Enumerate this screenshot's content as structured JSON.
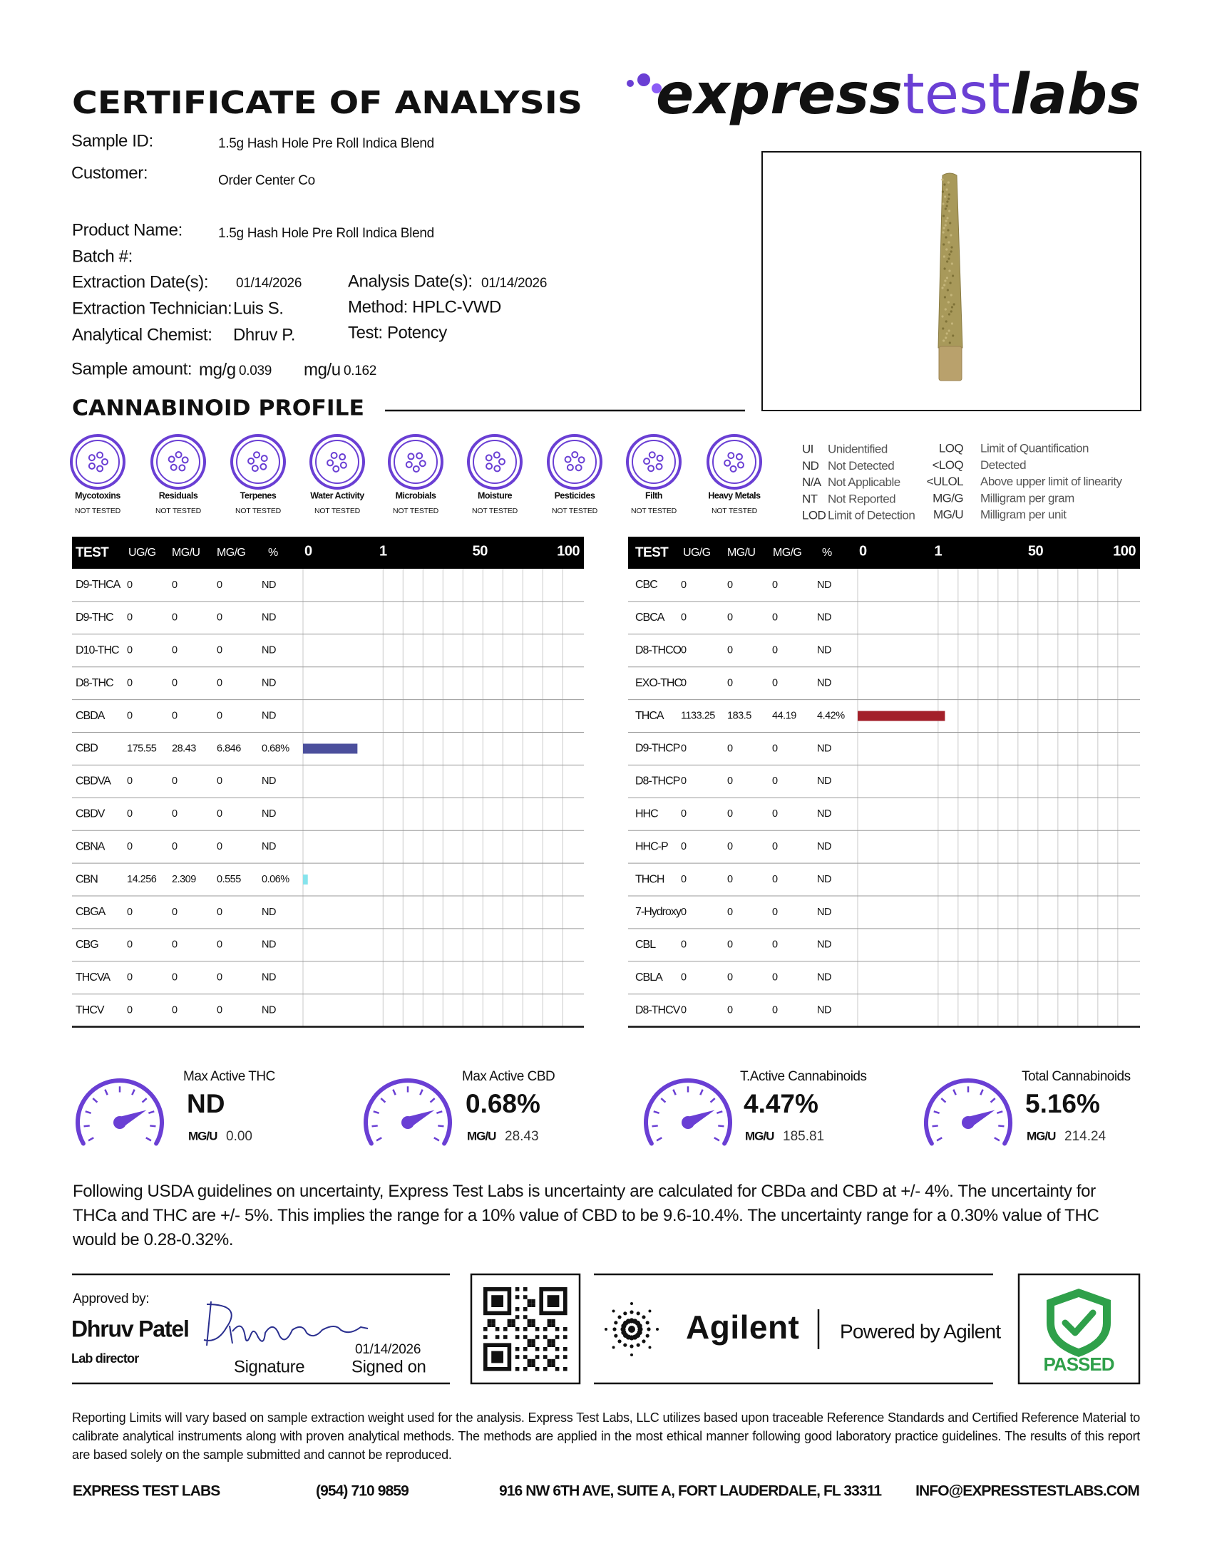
{
  "header": {
    "title": "CERTIFICATE OF ANALYSIS",
    "logo": [
      "express",
      "test",
      "labs"
    ]
  },
  "sample": {
    "sample_id": {
      "label": "Sample ID:",
      "value": "1.5g Hash Hole Pre Roll Indica Blend"
    },
    "customer": {
      "label": "Customer:",
      "value": "Order Center Co"
    },
    "product_name": {
      "label": "Product Name:",
      "value": "1.5g Hash Hole Pre Roll Indica Blend"
    },
    "batch": {
      "label": "Batch #:"
    },
    "extraction_date": {
      "label": "Extraction Date(s):",
      "value": "01/14/2026"
    },
    "analysis_date": {
      "label": "Analysis Date(s):",
      "value": "01/14/2026"
    },
    "extraction_technician": {
      "label": "Extraction Technician:",
      "value": "Luis S."
    },
    "method": "Method: HPLC-VWD",
    "analytical_chemist": {
      "label": "Analytical Chemist:",
      "value": "Dhruv P."
    },
    "test": "Test: Potency",
    "sample_amount": {
      "label": "Sample amount:",
      "mg_g_label": "mg/g",
      "mg_g": "0.039",
      "mg_u_label": "mg/u",
      "mg_u": "0.162"
    }
  },
  "profile": {
    "title": "CANNABINOID PROFILE"
  },
  "tests": [
    {
      "name": "Mycotoxins",
      "status": "NOT TESTED"
    },
    {
      "name": "Residuals",
      "status": "NOT TESTED"
    },
    {
      "name": "Terpenes",
      "status": "NOT TESTED"
    },
    {
      "name": "Water Activity",
      "status": "NOT TESTED"
    },
    {
      "name": "Microbials",
      "status": "NOT TESTED"
    },
    {
      "name": "Moisture",
      "status": "NOT TESTED"
    },
    {
      "name": "Pesticides",
      "status": "NOT TESTED"
    },
    {
      "name": "Filth",
      "status": "NOT TESTED"
    },
    {
      "name": "Heavy Metals",
      "status": "NOT TESTED"
    }
  ],
  "legend": {
    "left": [
      {
        "abbr": "UI",
        "meaning": "Unidentified"
      },
      {
        "abbr": "ND",
        "meaning": "Not Detected"
      },
      {
        "abbr": "N/A",
        "meaning": "Not Applicable"
      },
      {
        "abbr": "NT",
        "meaning": "Not Reported"
      },
      {
        "abbr": "LOD",
        "meaning": "Limit of Detection"
      }
    ],
    "right": [
      {
        "abbr": "LOQ",
        "meaning": "Limit of Quantification"
      },
      {
        "abbr": "<LOQ",
        "meaning": "Detected"
      },
      {
        "abbr": "<ULOL",
        "meaning": "Above upper limit of linearity"
      },
      {
        "abbr": "MG/G",
        "meaning": "Milligram per gram"
      },
      {
        "abbr": "MG/U",
        "meaning": "Milligram per unit"
      }
    ]
  },
  "tables": [
    {
      "columns": [
        "TEST",
        "UG/G",
        "MG/U",
        "MG/G",
        "%"
      ],
      "scale": [
        0,
        1,
        50,
        100
      ],
      "rows": [
        {
          "test": "D9-THCA",
          "ug_g": 0,
          "mg_u": 0,
          "mg_g": 0,
          "percent": null,
          "percent_label": "ND"
        },
        {
          "test": "D9-THC",
          "ug_g": 0,
          "mg_u": 0,
          "mg_g": 0,
          "percent": null,
          "percent_label": "ND"
        },
        {
          "test": "D10-THC",
          "ug_g": 0,
          "mg_u": 0,
          "mg_g": 0,
          "percent": null,
          "percent_label": "ND"
        },
        {
          "test": "D8-THC",
          "ug_g": 0,
          "mg_u": 0,
          "mg_g": 0,
          "percent": null,
          "percent_label": "ND"
        },
        {
          "test": "CBDA",
          "ug_g": 0,
          "mg_u": 0,
          "mg_g": 0,
          "percent": null,
          "percent_label": "ND"
        },
        {
          "test": "CBD",
          "ug_g": 175.55,
          "mg_u": 28.43,
          "mg_g": 6.846,
          "percent": 0.68,
          "percent_label": "0.68%",
          "color": "#4b4f9c"
        },
        {
          "test": "CBDVA",
          "ug_g": 0,
          "mg_u": 0,
          "mg_g": 0,
          "percent": null,
          "percent_label": "ND"
        },
        {
          "test": "CBDV",
          "ug_g": 0,
          "mg_u": 0,
          "mg_g": 0,
          "percent": null,
          "percent_label": "ND"
        },
        {
          "test": "CBNA",
          "ug_g": 0,
          "mg_u": 0,
          "mg_g": 0,
          "percent": null,
          "percent_label": "ND"
        },
        {
          "test": "CBN",
          "ug_g": 14.256,
          "mg_u": 2.309,
          "mg_g": 0.555,
          "percent": 0.06,
          "percent_label": "0.06%",
          "color": "#86e3ec"
        },
        {
          "test": "CBGA",
          "ug_g": 0,
          "mg_u": 0,
          "mg_g": 0,
          "percent": null,
          "percent_label": "ND"
        },
        {
          "test": "CBG",
          "ug_g": 0,
          "mg_u": 0,
          "mg_g": 0,
          "percent": null,
          "percent_label": "ND"
        },
        {
          "test": "THCVA",
          "ug_g": 0,
          "mg_u": 0,
          "mg_g": 0,
          "percent": null,
          "percent_label": "ND"
        },
        {
          "test": "THCV",
          "ug_g": 0,
          "mg_u": 0,
          "mg_g": 0,
          "percent": null,
          "percent_label": "ND"
        }
      ]
    },
    {
      "columns": [
        "TEST",
        "UG/G",
        "MG/U",
        "MG/G",
        "%"
      ],
      "scale": [
        0,
        1,
        50,
        100
      ],
      "rows": [
        {
          "test": "CBC",
          "ug_g": 0,
          "mg_u": 0,
          "mg_g": 0,
          "percent": null,
          "percent_label": "ND"
        },
        {
          "test": "CBCA",
          "ug_g": 0,
          "mg_u": 0,
          "mg_g": 0,
          "percent": null,
          "percent_label": "ND"
        },
        {
          "test": "D8-THCO",
          "ug_g": 0,
          "mg_u": 0,
          "mg_g": 0,
          "percent": null,
          "percent_label": "ND"
        },
        {
          "test": "EXO-THC",
          "ug_g": 0,
          "mg_u": 0,
          "mg_g": 0,
          "percent": null,
          "percent_label": "ND"
        },
        {
          "test": "THCA",
          "ug_g": 1133.25,
          "mg_u": 183.5,
          "mg_g": 44.19,
          "percent": 4.42,
          "percent_label": "4.42%",
          "color": "#a3202a"
        },
        {
          "test": "D9-THCP",
          "ug_g": 0,
          "mg_u": 0,
          "mg_g": 0,
          "percent": null,
          "percent_label": "ND"
        },
        {
          "test": "D8-THCP",
          "ug_g": 0,
          "mg_u": 0,
          "mg_g": 0,
          "percent": null,
          "percent_label": "ND"
        },
        {
          "test": "HHC",
          "ug_g": 0,
          "mg_u": 0,
          "mg_g": 0,
          "percent": null,
          "percent_label": "ND"
        },
        {
          "test": "HHC-P",
          "ug_g": 0,
          "mg_u": 0,
          "mg_g": 0,
          "percent": null,
          "percent_label": "ND"
        },
        {
          "test": "THCH",
          "ug_g": 0,
          "mg_u": 0,
          "mg_g": 0,
          "percent": null,
          "percent_label": "ND"
        },
        {
          "test": "7-Hydroxy",
          "ug_g": 0,
          "mg_u": 0,
          "mg_g": 0,
          "percent": null,
          "percent_label": "ND"
        },
        {
          "test": "CBL",
          "ug_g": 0,
          "mg_u": 0,
          "mg_g": 0,
          "percent": null,
          "percent_label": "ND"
        },
        {
          "test": "CBLA",
          "ug_g": 0,
          "mg_u": 0,
          "mg_g": 0,
          "percent": null,
          "percent_label": "ND"
        },
        {
          "test": "D8-THCV",
          "ug_g": 0,
          "mg_u": 0,
          "mg_g": 0,
          "percent": null,
          "percent_label": "ND"
        }
      ]
    }
  ],
  "gauges": [
    {
      "label": "Max Active THC",
      "value": "ND",
      "unit": "MG/U",
      "amount": "0.00"
    },
    {
      "label": "Max Active CBD",
      "value": "0.68%",
      "unit": "MG/U",
      "amount": "28.43"
    },
    {
      "label": "T.Active Cannabinoids",
      "value": "4.47%",
      "unit": "MG/U",
      "amount": "185.81"
    },
    {
      "label": "Total Cannabinoids",
      "value": "5.16%",
      "unit": "MG/U",
      "amount": "214.24"
    }
  ],
  "uncertainty": "Following USDA guidelines on uncertainty, Express Test Labs is uncertainty are calculated for CBDa and CBD at +/- 4%. The uncertainty for THCa and THC are +/- 5%. This implies the range for a 10% value of CBD to be 9.6-10.4%. The uncertainty range for a 0.30% value of THC would be 0.28-0.32%.",
  "approval": {
    "label": "Approved by:",
    "name": "Dhruv Patel",
    "role": "Lab director",
    "signature_label": "Signature",
    "date": "01/14/2026",
    "signed_on_label": "Signed on"
  },
  "agilent": {
    "brand": "Agilent",
    "tagline": "Powered by Agilent"
  },
  "result": "PASSED",
  "disclaimer": "Reporting Limits will vary based on sample extraction weight used for the analysis. Express Test Labs, LLC utilizes based upon traceable Reference Standards and Certified Reference Material to calibrate analytical instruments along with proven analytical methods. The methods are applied in the most ethical manner following good laboratory practice guidelines. The results of this report are based solely on the sample submitted and cannot be reproduced.",
  "footer": {
    "company": "EXPRESS TEST LABS",
    "phone": "(954) 710 9859",
    "address": "916 NW 6TH AVE, SUITE A, FORT LAUDERDALE, FL 33311",
    "email": "INFO@EXPRESSTESTLABS.COM"
  }
}
